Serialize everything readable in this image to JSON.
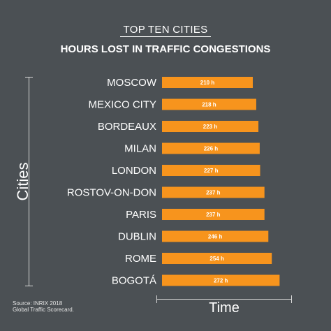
{
  "subtitle": "TOP TEN CITIES",
  "source": {
    "line1": "Source: INRIX 2018",
    "line2": "Global Traffic Scorecard."
  },
  "colors": {
    "background": "#4b5054",
    "bar": "#f7941d",
    "text": "#ffffff"
  },
  "chart_data": {
    "type": "bar",
    "orientation": "horizontal",
    "title": "HOURS LOST IN TRAFFIC CONGESTIONS",
    "xlabel": "Time",
    "ylabel": "Cities",
    "categories": [
      "MOSCOW",
      "MEXICO CITY",
      "BORDEAUX",
      "MILAN",
      "LONDON",
      "ROSTOV-ON-DON",
      "PARIS",
      "DUBLIN",
      "ROME",
      "BOGOTÁ"
    ],
    "values": [
      210,
      218,
      223,
      226,
      227,
      237,
      237,
      246,
      254,
      272
    ],
    "value_labels": [
      "210 h",
      "218 h",
      "223 h",
      "226 h",
      "227 h",
      "237 h",
      "237 h",
      "246 h",
      "254 h",
      "272 h"
    ],
    "unit": "h",
    "grid": false,
    "legend": "none"
  }
}
